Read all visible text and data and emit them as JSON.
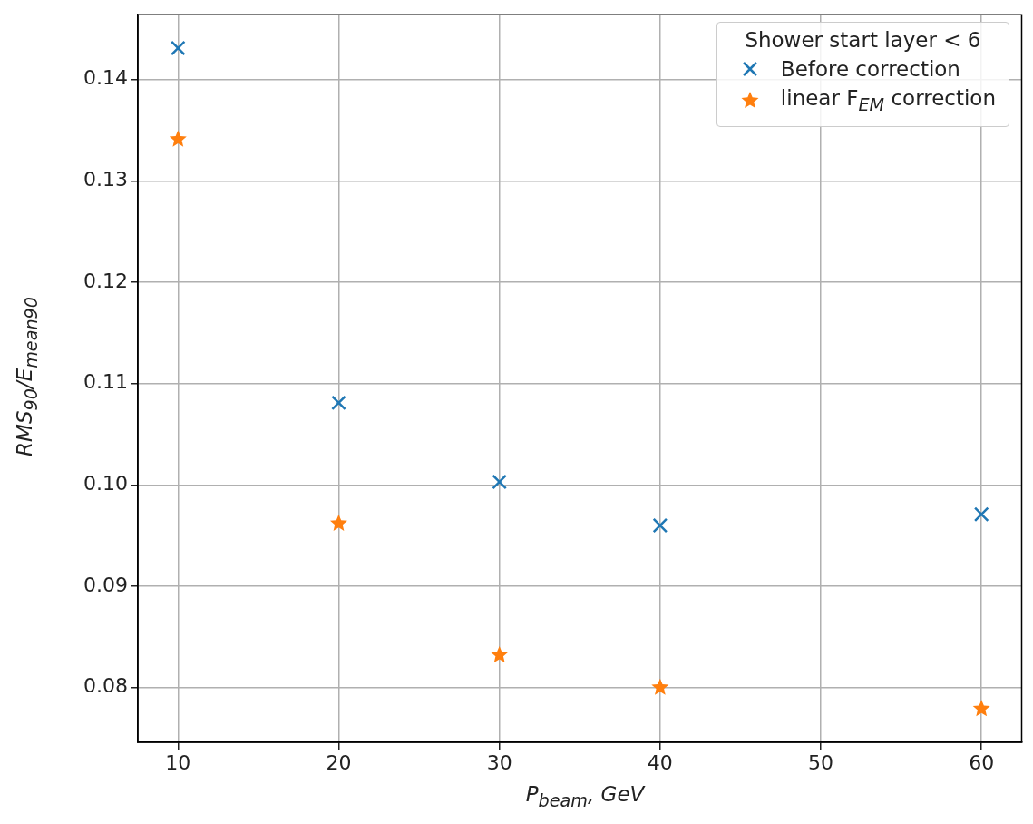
{
  "chart_data": {
    "type": "scatter",
    "xlabel": "P$_{beam}$, GeV",
    "ylabel": "RMS$_{90}$/E$_{mean90}$",
    "legend_title": "Shower start layer < 6",
    "x": [
      10,
      20,
      30,
      40,
      60
    ],
    "series": [
      {
        "name": "Before correction",
        "color": "#1f77b4",
        "marker": "cross",
        "values": [
          0.1431,
          0.1081,
          0.1003,
          0.096,
          0.0971
        ]
      },
      {
        "name": "linear F$_{EM}$ correction",
        "color": "#ff7f0e",
        "marker": "star",
        "values": [
          0.1341,
          0.0962,
          0.0832,
          0.08,
          0.0779
        ]
      }
    ],
    "xlim": [
      7.5,
      62.5
    ],
    "xticks": [
      10,
      20,
      30,
      40,
      50,
      60
    ],
    "ylim": [
      0.0746,
      0.1464
    ],
    "yticks": [
      0.08,
      0.09,
      {
        "value": 0.1,
        "label": "0.10"
      },
      0.11,
      0.12,
      0.13,
      0.14
    ],
    "grid": true,
    "legend": "top right"
  }
}
